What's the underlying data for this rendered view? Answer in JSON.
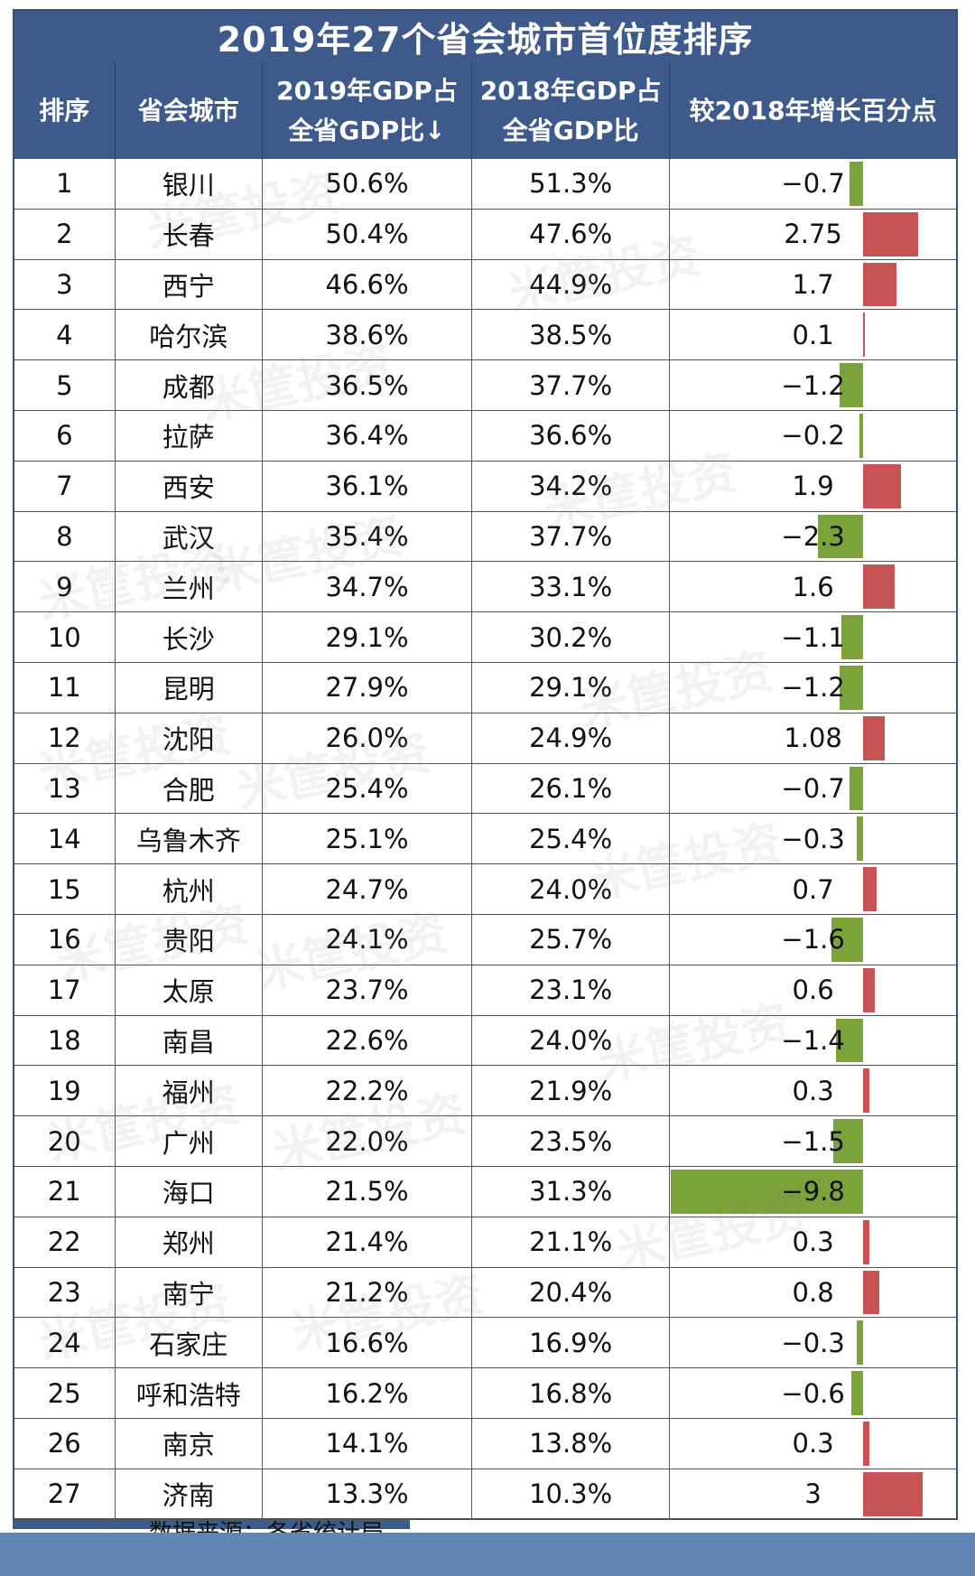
{
  "title": "2019年27个省会城市首位度排序",
  "headers": [
    "排序",
    "省会城市",
    "2019年GDP占\n全省GDP比↓",
    "2018年GDP占\n全省GDP比",
    "较2018年增长百分点"
  ],
  "watermark": "米筐投资",
  "colors": {
    "header_bg": "#3e5a8a",
    "positive_bar": "#c65454",
    "negative_bar": "#7aa33a"
  },
  "rows": [
    {
      "rank": "1",
      "city": "银川",
      "gdp2019": "50.6%",
      "gdp2018": "51.3%",
      "change": "−0.7",
      "value": -0.7
    },
    {
      "rank": "2",
      "city": "长春",
      "gdp2019": "50.4%",
      "gdp2018": "47.6%",
      "change": "2.75",
      "value": 2.75
    },
    {
      "rank": "3",
      "city": "西宁",
      "gdp2019": "46.6%",
      "gdp2018": "44.9%",
      "change": "1.7",
      "value": 1.7
    },
    {
      "rank": "4",
      "city": "哈尔滨",
      "gdp2019": "38.6%",
      "gdp2018": "38.5%",
      "change": "0.1",
      "value": 0.1
    },
    {
      "rank": "5",
      "city": "成都",
      "gdp2019": "36.5%",
      "gdp2018": "37.7%",
      "change": "−1.2",
      "value": -1.2
    },
    {
      "rank": "6",
      "city": "拉萨",
      "gdp2019": "36.4%",
      "gdp2018": "36.6%",
      "change": "−0.2",
      "value": -0.2
    },
    {
      "rank": "7",
      "city": "西安",
      "gdp2019": "36.1%",
      "gdp2018": "34.2%",
      "change": "1.9",
      "value": 1.9
    },
    {
      "rank": "8",
      "city": "武汉",
      "gdp2019": "35.4%",
      "gdp2018": "37.7%",
      "change": "−2.3",
      "value": -2.3
    },
    {
      "rank": "9",
      "city": "兰州",
      "gdp2019": "34.7%",
      "gdp2018": "33.1%",
      "change": "1.6",
      "value": 1.6
    },
    {
      "rank": "10",
      "city": "长沙",
      "gdp2019": "29.1%",
      "gdp2018": "30.2%",
      "change": "−1.1",
      "value": -1.1
    },
    {
      "rank": "11",
      "city": "昆明",
      "gdp2019": "27.9%",
      "gdp2018": "29.1%",
      "change": "−1.2",
      "value": -1.2
    },
    {
      "rank": "12",
      "city": "沈阳",
      "gdp2019": "26.0%",
      "gdp2018": "24.9%",
      "change": "1.08",
      "value": 1.08
    },
    {
      "rank": "13",
      "city": "合肥",
      "gdp2019": "25.4%",
      "gdp2018": "26.1%",
      "change": "−0.7",
      "value": -0.7
    },
    {
      "rank": "14",
      "city": "乌鲁木齐",
      "gdp2019": "25.1%",
      "gdp2018": "25.4%",
      "change": "−0.3",
      "value": -0.3
    },
    {
      "rank": "15",
      "city": "杭州",
      "gdp2019": "24.7%",
      "gdp2018": "24.0%",
      "change": "0.7",
      "value": 0.7
    },
    {
      "rank": "16",
      "city": "贵阳",
      "gdp2019": "24.1%",
      "gdp2018": "25.7%",
      "change": "−1.6",
      "value": -1.6
    },
    {
      "rank": "17",
      "city": "太原",
      "gdp2019": "23.7%",
      "gdp2018": "23.1%",
      "change": "0.6",
      "value": 0.6
    },
    {
      "rank": "18",
      "city": "南昌",
      "gdp2019": "22.6%",
      "gdp2018": "24.0%",
      "change": "−1.4",
      "value": -1.4
    },
    {
      "rank": "19",
      "city": "福州",
      "gdp2019": "22.2%",
      "gdp2018": "21.9%",
      "change": "0.3",
      "value": 0.3
    },
    {
      "rank": "20",
      "city": "广州",
      "gdp2019": "22.0%",
      "gdp2018": "23.5%",
      "change": "−1.5",
      "value": -1.5
    },
    {
      "rank": "21",
      "city": "海口",
      "gdp2019": "21.5%",
      "gdp2018": "31.3%",
      "change": "−9.8",
      "value": -9.8
    },
    {
      "rank": "22",
      "city": "郑州",
      "gdp2019": "21.4%",
      "gdp2018": "21.1%",
      "change": "0.3",
      "value": 0.3
    },
    {
      "rank": "23",
      "city": "南宁",
      "gdp2019": "21.2%",
      "gdp2018": "20.4%",
      "change": "0.8",
      "value": 0.8
    },
    {
      "rank": "24",
      "city": "石家庄",
      "gdp2019": "16.6%",
      "gdp2018": "16.9%",
      "change": "−0.3",
      "value": -0.3
    },
    {
      "rank": "25",
      "city": "呼和浩特",
      "gdp2019": "16.2%",
      "gdp2018": "16.8%",
      "change": "−0.6",
      "value": -0.6
    },
    {
      "rank": "26",
      "city": "南京",
      "gdp2019": "14.1%",
      "gdp2018": "13.8%",
      "change": "0.3",
      "value": 0.3
    },
    {
      "rank": "27",
      "city": "济南",
      "gdp2019": "13.3%",
      "gdp2018": "10.3%",
      "change": "3",
      "value": 3
    }
  ],
  "footer": "数据来源：各省统计局"
}
